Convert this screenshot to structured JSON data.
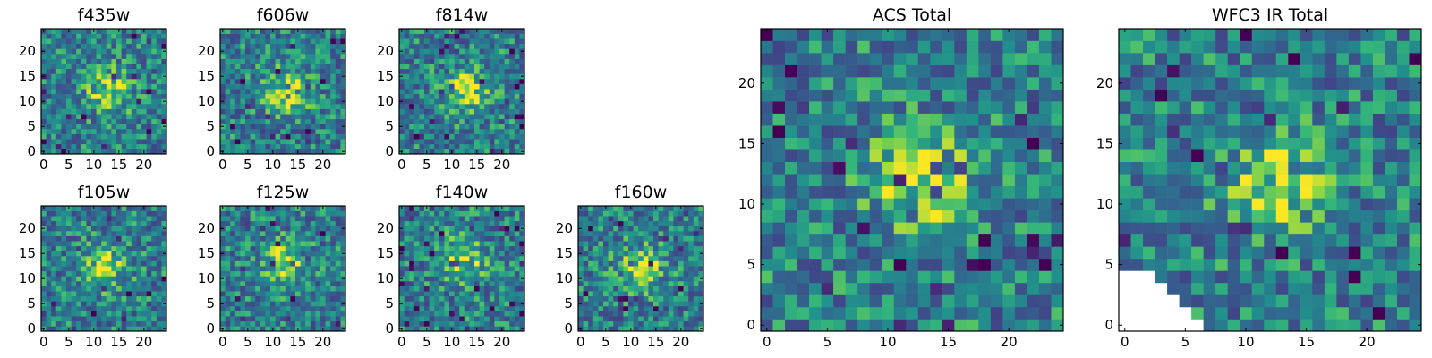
{
  "chart_data": [
    {
      "type": "heatmap",
      "title": "f435w",
      "x_ticks": [
        "0",
        "5",
        "10",
        "15",
        "20"
      ],
      "y_ticks": [
        "0",
        "5",
        "10",
        "15",
        "20"
      ],
      "xlim": [
        0,
        25
      ],
      "ylim": [
        0,
        25
      ],
      "colormap": "viridis",
      "grid_size": [
        25,
        25
      ],
      "source_center": [
        13,
        12
      ]
    },
    {
      "type": "heatmap",
      "title": "f606w",
      "x_ticks": [
        "0",
        "5",
        "10",
        "15",
        "20"
      ],
      "y_ticks": [
        "0",
        "5",
        "10",
        "15",
        "20"
      ],
      "xlim": [
        0,
        25
      ],
      "ylim": [
        0,
        25
      ],
      "colormap": "viridis",
      "grid_size": [
        25,
        25
      ],
      "source_center": [
        13,
        12
      ]
    },
    {
      "type": "heatmap",
      "title": "f814w",
      "x_ticks": [
        "0",
        "5",
        "10",
        "15",
        "20"
      ],
      "y_ticks": [
        "0",
        "5",
        "10",
        "15",
        "20"
      ],
      "xlim": [
        0,
        25
      ],
      "ylim": [
        0,
        25
      ],
      "colormap": "viridis",
      "grid_size": [
        25,
        25
      ],
      "source_center": [
        13,
        12
      ]
    },
    {
      "type": "heatmap",
      "title": "f105w",
      "x_ticks": [
        "0",
        "5",
        "10",
        "15",
        "20"
      ],
      "y_ticks": [
        "0",
        "5",
        "10",
        "15",
        "20"
      ],
      "xlim": [
        0,
        25
      ],
      "ylim": [
        0,
        25
      ],
      "colormap": "viridis",
      "grid_size": [
        25,
        25
      ],
      "source_center": [
        12,
        12
      ]
    },
    {
      "type": "heatmap",
      "title": "f125w",
      "x_ticks": [
        "0",
        "5",
        "10",
        "15",
        "20"
      ],
      "y_ticks": [
        "0",
        "5",
        "10",
        "15",
        "20"
      ],
      "xlim": [
        0,
        25
      ],
      "ylim": [
        0,
        25
      ],
      "colormap": "viridis",
      "grid_size": [
        25,
        25
      ],
      "source_center": [
        12,
        13
      ]
    },
    {
      "type": "heatmap",
      "title": "f140w",
      "x_ticks": [
        "0",
        "5",
        "10",
        "15",
        "20"
      ],
      "y_ticks": [
        "0",
        "5",
        "10",
        "15",
        "20"
      ],
      "xlim": [
        0,
        25
      ],
      "ylim": [
        0,
        25
      ],
      "colormap": "viridis",
      "grid_size": [
        25,
        25
      ],
      "source_center": [
        12,
        14
      ]
    },
    {
      "type": "heatmap",
      "title": "f160w",
      "x_ticks": [
        "0",
        "5",
        "10",
        "15",
        "20"
      ],
      "y_ticks": [
        "0",
        "5",
        "10",
        "15",
        "20"
      ],
      "xlim": [
        0,
        25
      ],
      "ylim": [
        0,
        25
      ],
      "colormap": "viridis",
      "grid_size": [
        25,
        25
      ],
      "source_center": [
        12,
        12
      ]
    },
    {
      "type": "heatmap",
      "title": "ACS Total",
      "x_ticks": [
        "0",
        "5",
        "10",
        "15",
        "20"
      ],
      "y_ticks": [
        "0",
        "5",
        "10",
        "15",
        "20"
      ],
      "xlim": [
        0,
        25
      ],
      "ylim": [
        0,
        25
      ],
      "colormap": "viridis",
      "grid_size": [
        25,
        25
      ],
      "source_center": [
        13,
        12
      ]
    },
    {
      "type": "heatmap",
      "title": "WFC3 IR Total",
      "x_ticks": [
        "0",
        "5",
        "10",
        "15",
        "20"
      ],
      "y_ticks": [
        "0",
        "5",
        "10",
        "15",
        "20"
      ],
      "xlim": [
        0,
        25
      ],
      "ylim": [
        0,
        25
      ],
      "colormap": "viridis",
      "grid_size": [
        25,
        25
      ],
      "source_center": [
        13,
        12
      ],
      "masked_region": "lower-left (no data, white)"
    }
  ]
}
